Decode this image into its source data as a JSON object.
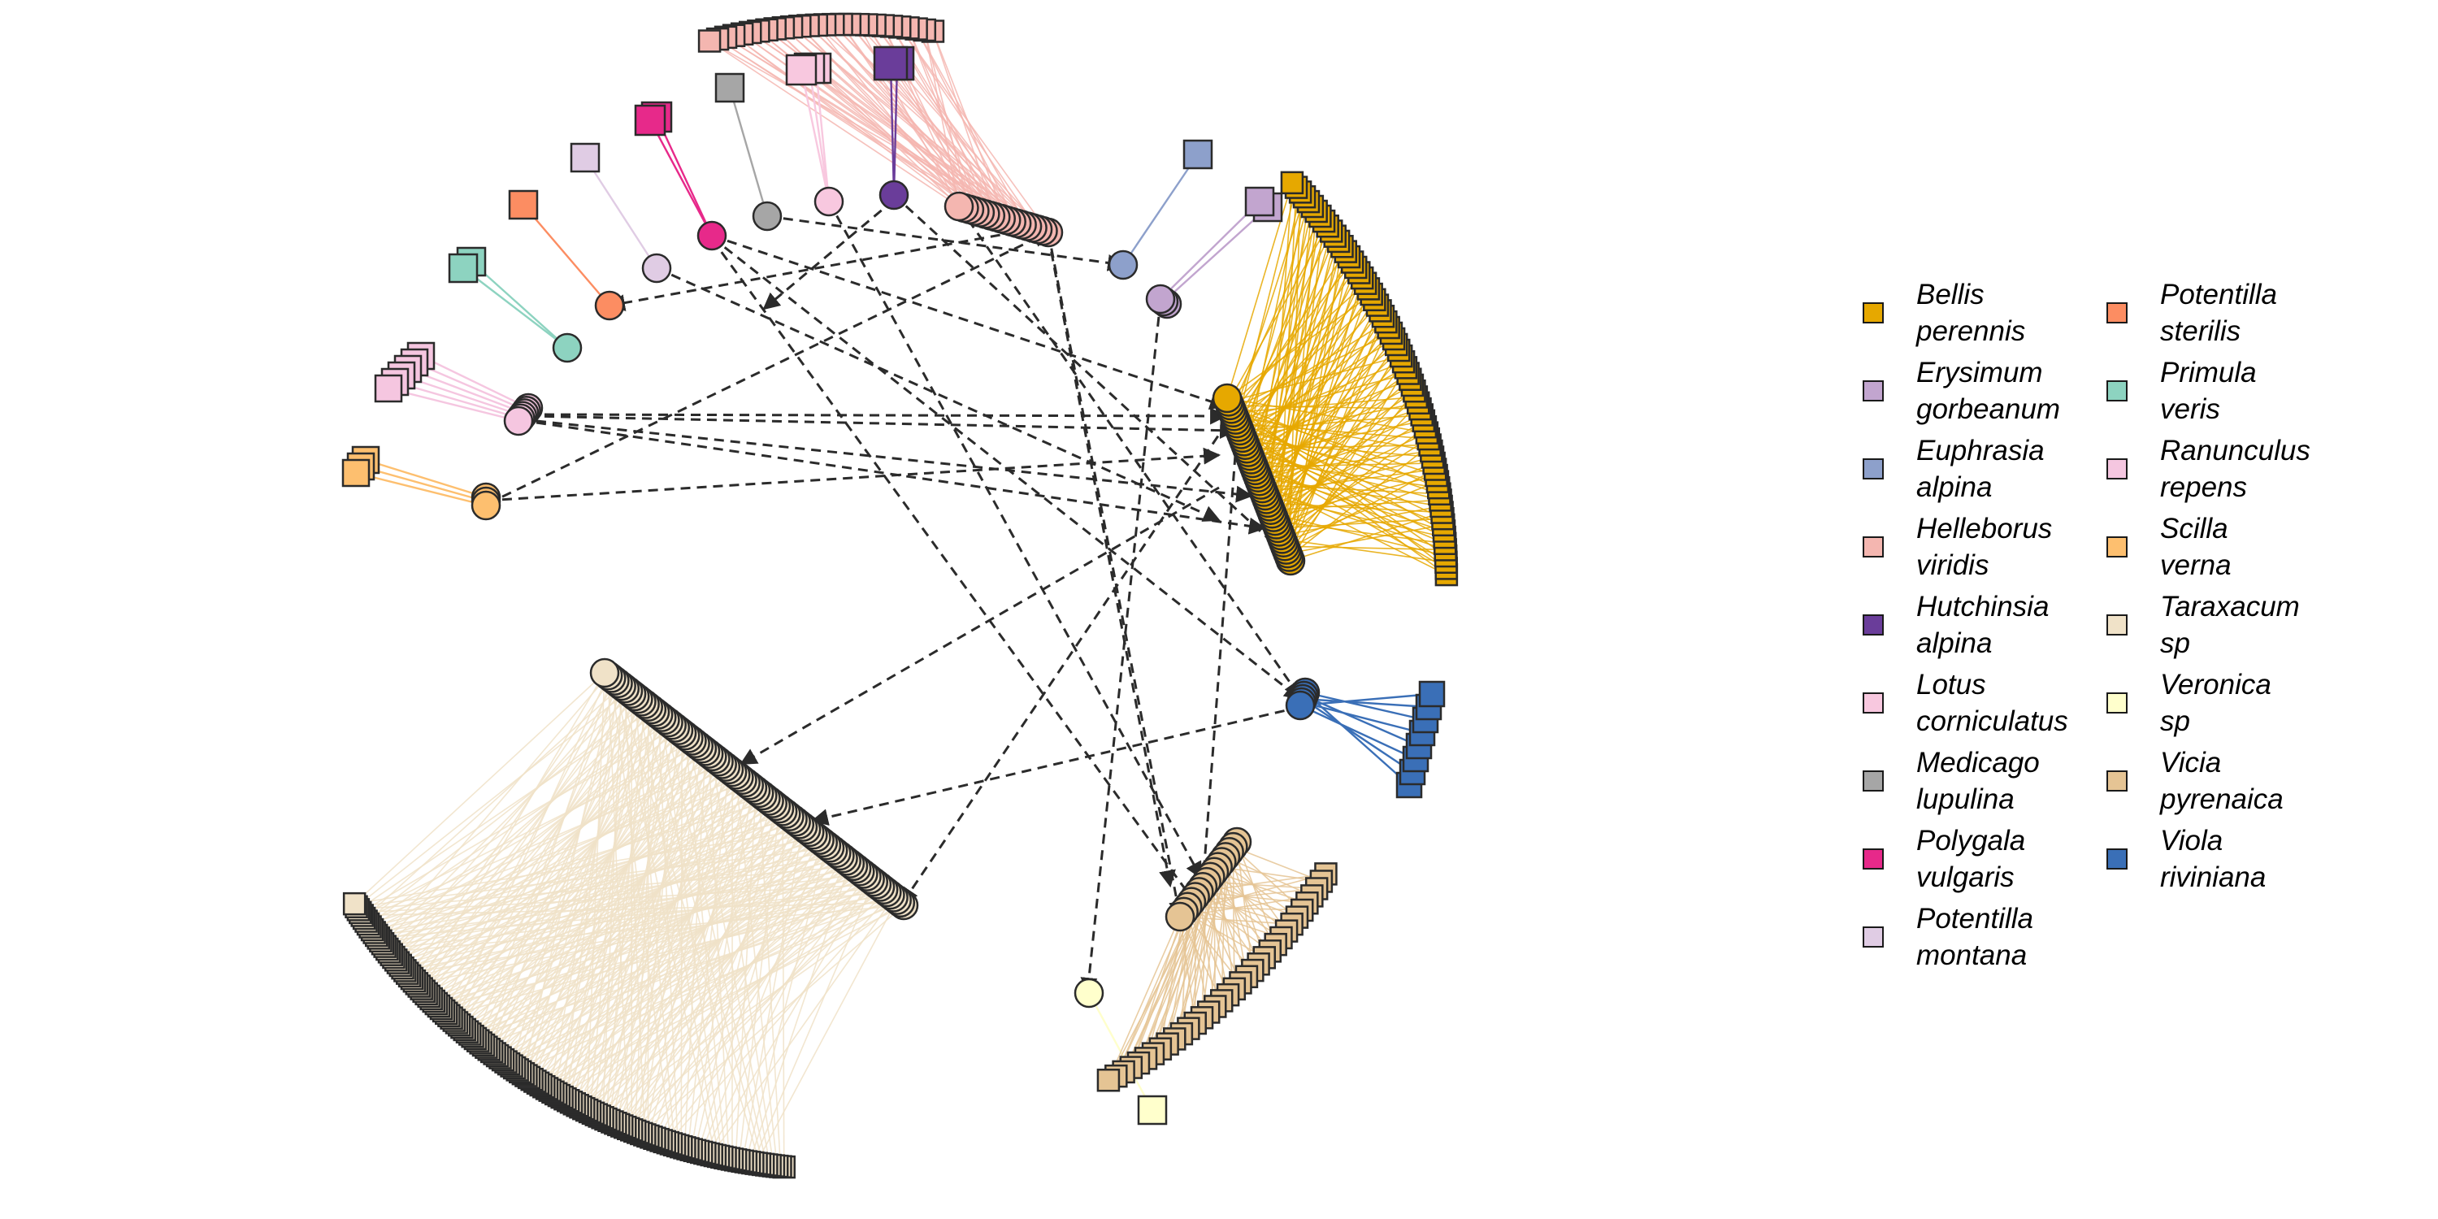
{
  "legend": {
    "items": [
      {
        "line1": "Bellis",
        "line2": "perennis",
        "color": "#E6A800"
      },
      {
        "line1": "Erysimum",
        "line2": "gorbeanum",
        "color": "#C2A5CF"
      },
      {
        "line1": "Euphrasia",
        "line2": "alpina",
        "color": "#8DA0CB"
      },
      {
        "line1": "Helleborus",
        "line2": "viridis",
        "color": "#F4B6B0"
      },
      {
        "line1": "Hutchinsia",
        "line2": "alpina",
        "color": "#6A3D9A"
      },
      {
        "line1": "Lotus",
        "line2": "corniculatus",
        "color": "#F8C8DF"
      },
      {
        "line1": "Medicago",
        "line2": "lupulina",
        "color": "#A6A6A6"
      },
      {
        "line1": "Polygala",
        "line2": "vulgaris",
        "color": "#E7298A"
      },
      {
        "line1": "Potentilla",
        "line2": "montana",
        "color": "#E0CCE4"
      },
      {
        "line1": "Potentilla",
        "line2": "sterilis",
        "color": "#FC8D62"
      },
      {
        "line1": "Primula",
        "line2": "veris",
        "color": "#8DD3C0"
      },
      {
        "line1": "Ranunculus",
        "line2": "repens",
        "color": "#F5C6E0"
      },
      {
        "line1": "Scilla",
        "line2": "verna",
        "color": "#FDBF6F"
      },
      {
        "line1": "Taraxacum",
        "line2": "sp",
        "color": "#F0E2C8"
      },
      {
        "line1": "Veronica",
        "line2": "sp",
        "color": "#FFFFCC"
      },
      {
        "line1": "Vicia",
        "line2": "pyrenaica",
        "color": "#E5C494"
      },
      {
        "line1": "Viola",
        "line2": "riviniana",
        "color": "#3A6FB7"
      }
    ]
  },
  "colors": {
    "node_border": "#2b2b2b",
    "dashed_link": "#2b2b2b",
    "background": "#ffffff"
  }
}
